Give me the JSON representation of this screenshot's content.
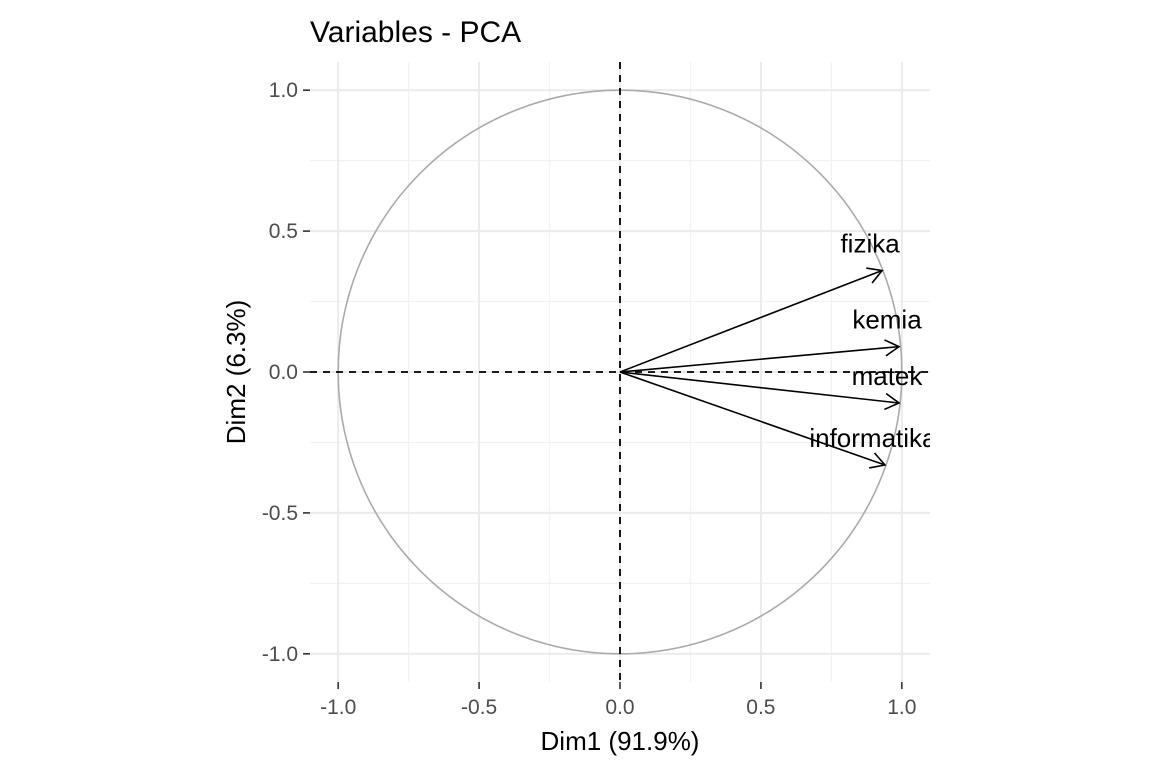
{
  "chart_data": {
    "type": "scatter",
    "title": "Variables - PCA",
    "xlabel": "Dim1 (91.9%)",
    "ylabel": "Dim2 (6.3%)",
    "xlim": [
      -1.1,
      1.1
    ],
    "ylim": [
      -1.1,
      1.1
    ],
    "xticks": [
      -1.0,
      -0.5,
      0.0,
      0.5,
      1.0
    ],
    "yticks": [
      -1.0,
      -0.5,
      0.0,
      0.5,
      1.0
    ],
    "xtick_labels": [
      "-1.0",
      "-0.5",
      "0.0",
      "0.5",
      "1.0"
    ],
    "ytick_labels": [
      "-1.0",
      "-0.5",
      "0.0",
      "0.5",
      "1.0"
    ],
    "grid": true,
    "legend": "none",
    "correlation_circle": {
      "radius": 1.0,
      "color": "#aaaaaa"
    },
    "reference_lines": {
      "x": 0,
      "y": 0,
      "style": "dashed"
    },
    "variables": [
      {
        "name": "fizika",
        "x": 0.93,
        "y": 0.36
      },
      {
        "name": "kemia",
        "x": 0.99,
        "y": 0.09
      },
      {
        "name": "matek",
        "x": 0.99,
        "y": -0.11
      },
      {
        "name": "informatika",
        "x": 0.94,
        "y": -0.33
      }
    ],
    "arrow_color": "#000000"
  }
}
